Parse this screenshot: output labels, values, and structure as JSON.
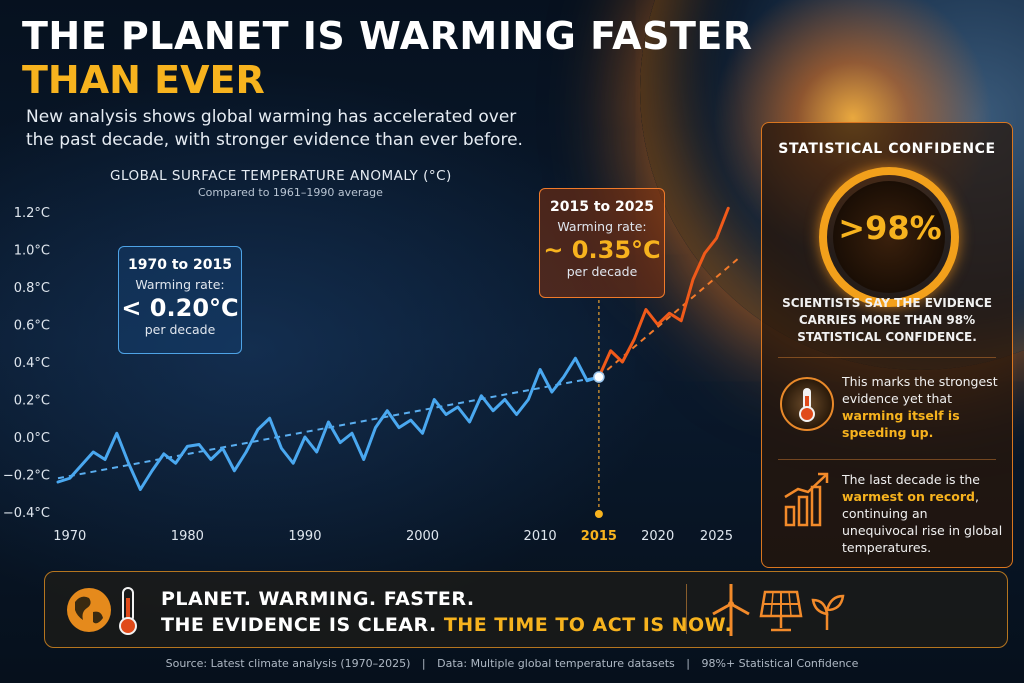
{
  "header": {
    "title_line1": "THE PLANET IS WARMING FASTER",
    "title_line2": "THAN EVER",
    "subtitle": "New analysis shows global warming has accelerated over the past decade, with stronger evidence than ever before."
  },
  "chart_data": {
    "type": "line",
    "title": "GLOBAL SURFACE TEMPERATURE ANOMALY (°C)",
    "subtitle": "Compared to 1961–1990 average",
    "xlabel": "",
    "ylabel": "",
    "xlim": [
      1969,
      2027
    ],
    "ylim": [
      -0.4,
      1.2
    ],
    "x_ticks": [
      "1970",
      "1980",
      "1990",
      "2000",
      "2010",
      "2015",
      "2020",
      "2025"
    ],
    "y_ticks": [
      "1.2°C",
      "1.0°C",
      "0.8°C",
      "0.6°C",
      "0.4°C",
      "0.2°C",
      "0.0°C",
      "−0.2°C",
      "−0.4°C"
    ],
    "grid": false,
    "series": [
      {
        "color": "#4aa8f0",
        "x": [
          1969,
          1970,
          1971,
          1972,
          1973,
          1974,
          1975,
          1976,
          1977,
          1978,
          1979,
          1980,
          1981,
          1982,
          1983,
          1984,
          1985,
          1986,
          1987,
          1988,
          1989,
          1990,
          1991,
          1992,
          1993,
          1994,
          1995,
          1996,
          1997,
          1998,
          1999,
          2000,
          2001,
          2002,
          2003,
          2004,
          2005,
          2006,
          2007,
          2008,
          2009,
          2010,
          2011,
          2012,
          2013,
          2014,
          2015
        ],
        "values": [
          -0.24,
          -0.22,
          -0.15,
          -0.08,
          -0.12,
          0.02,
          -0.14,
          -0.28,
          -0.18,
          -0.09,
          -0.14,
          -0.05,
          -0.04,
          -0.12,
          -0.06,
          -0.18,
          -0.08,
          0.04,
          0.1,
          -0.06,
          -0.14,
          0.0,
          -0.08,
          0.08,
          -0.03,
          0.02,
          -0.12,
          0.05,
          0.14,
          0.05,
          0.09,
          0.02,
          0.2,
          0.12,
          0.16,
          0.08,
          0.22,
          0.14,
          0.2,
          0.12,
          0.2,
          0.36,
          0.24,
          0.32,
          0.42,
          0.3,
          0.32
        ]
      },
      {
        "color": "#f05a1a",
        "x": [
          2015,
          2016,
          2017,
          2018,
          2019,
          2020,
          2021,
          2022,
          2023,
          2024,
          2025,
          2026
        ],
        "values": [
          0.32,
          0.46,
          0.4,
          0.52,
          0.68,
          0.6,
          0.66,
          0.62,
          0.84,
          0.98,
          1.06,
          1.22
        ]
      }
    ],
    "trend_lines": [
      {
        "color": "#5aaef0",
        "x": [
          1969,
          2015
        ],
        "values": [
          -0.22,
          0.32
        ]
      },
      {
        "color": "#f27a2a",
        "x": [
          2015,
          2027
        ],
        "values": [
          0.32,
          0.96
        ]
      }
    ],
    "marker_year": 2015,
    "marker_label": "2015"
  },
  "callouts": {
    "early": {
      "title": "1970 to 2015",
      "label": "Warming rate:",
      "value": "< 0.20°C",
      "unit": "per decade",
      "color": "#4ea3e6"
    },
    "recent": {
      "title": "2015 to 2025",
      "label": "Warming rate:",
      "value": "~ 0.35°C",
      "unit": "per decade",
      "color": "#f07a2a"
    }
  },
  "panel": {
    "title": "STATISTICAL CONFIDENCE",
    "confidence": ">98%",
    "description": "SCIENTISTS SAY THE EVIDENCE CARRIES MORE THAN 98% STATISTICAL CONFIDENCE.",
    "note1_pre": "This marks the strongest evidence yet that ",
    "note1_highlight": "warming itself is speeding up.",
    "note2_pre": "The last decade is the ",
    "note2_highlight": "warmest on record",
    "note2_post": ", continuing an unequivocal rise in global temperatures."
  },
  "banner": {
    "line1": "PLANET. WARMING. FASTER.",
    "line2_pre": "THE EVIDENCE IS CLEAR. ",
    "line2_highlight": "THE TIME TO ACT IS NOW."
  },
  "footer": {
    "source": "Source: Latest climate analysis (1970–2025)",
    "sep1": "|",
    "data": "Data: Multiple global temperature datasets",
    "sep2": "|",
    "confidence": "98%+ Statistical Confidence"
  },
  "colors": {
    "accent": "#f7b31e",
    "blue": "#4aa8f0",
    "orange": "#f05a1a"
  },
  "icons": [
    "globe-thermometer-icon",
    "thermometer-icon",
    "rising-bars-icon",
    "wind-turbine-icon",
    "solar-panel-icon",
    "sprout-icon"
  ]
}
